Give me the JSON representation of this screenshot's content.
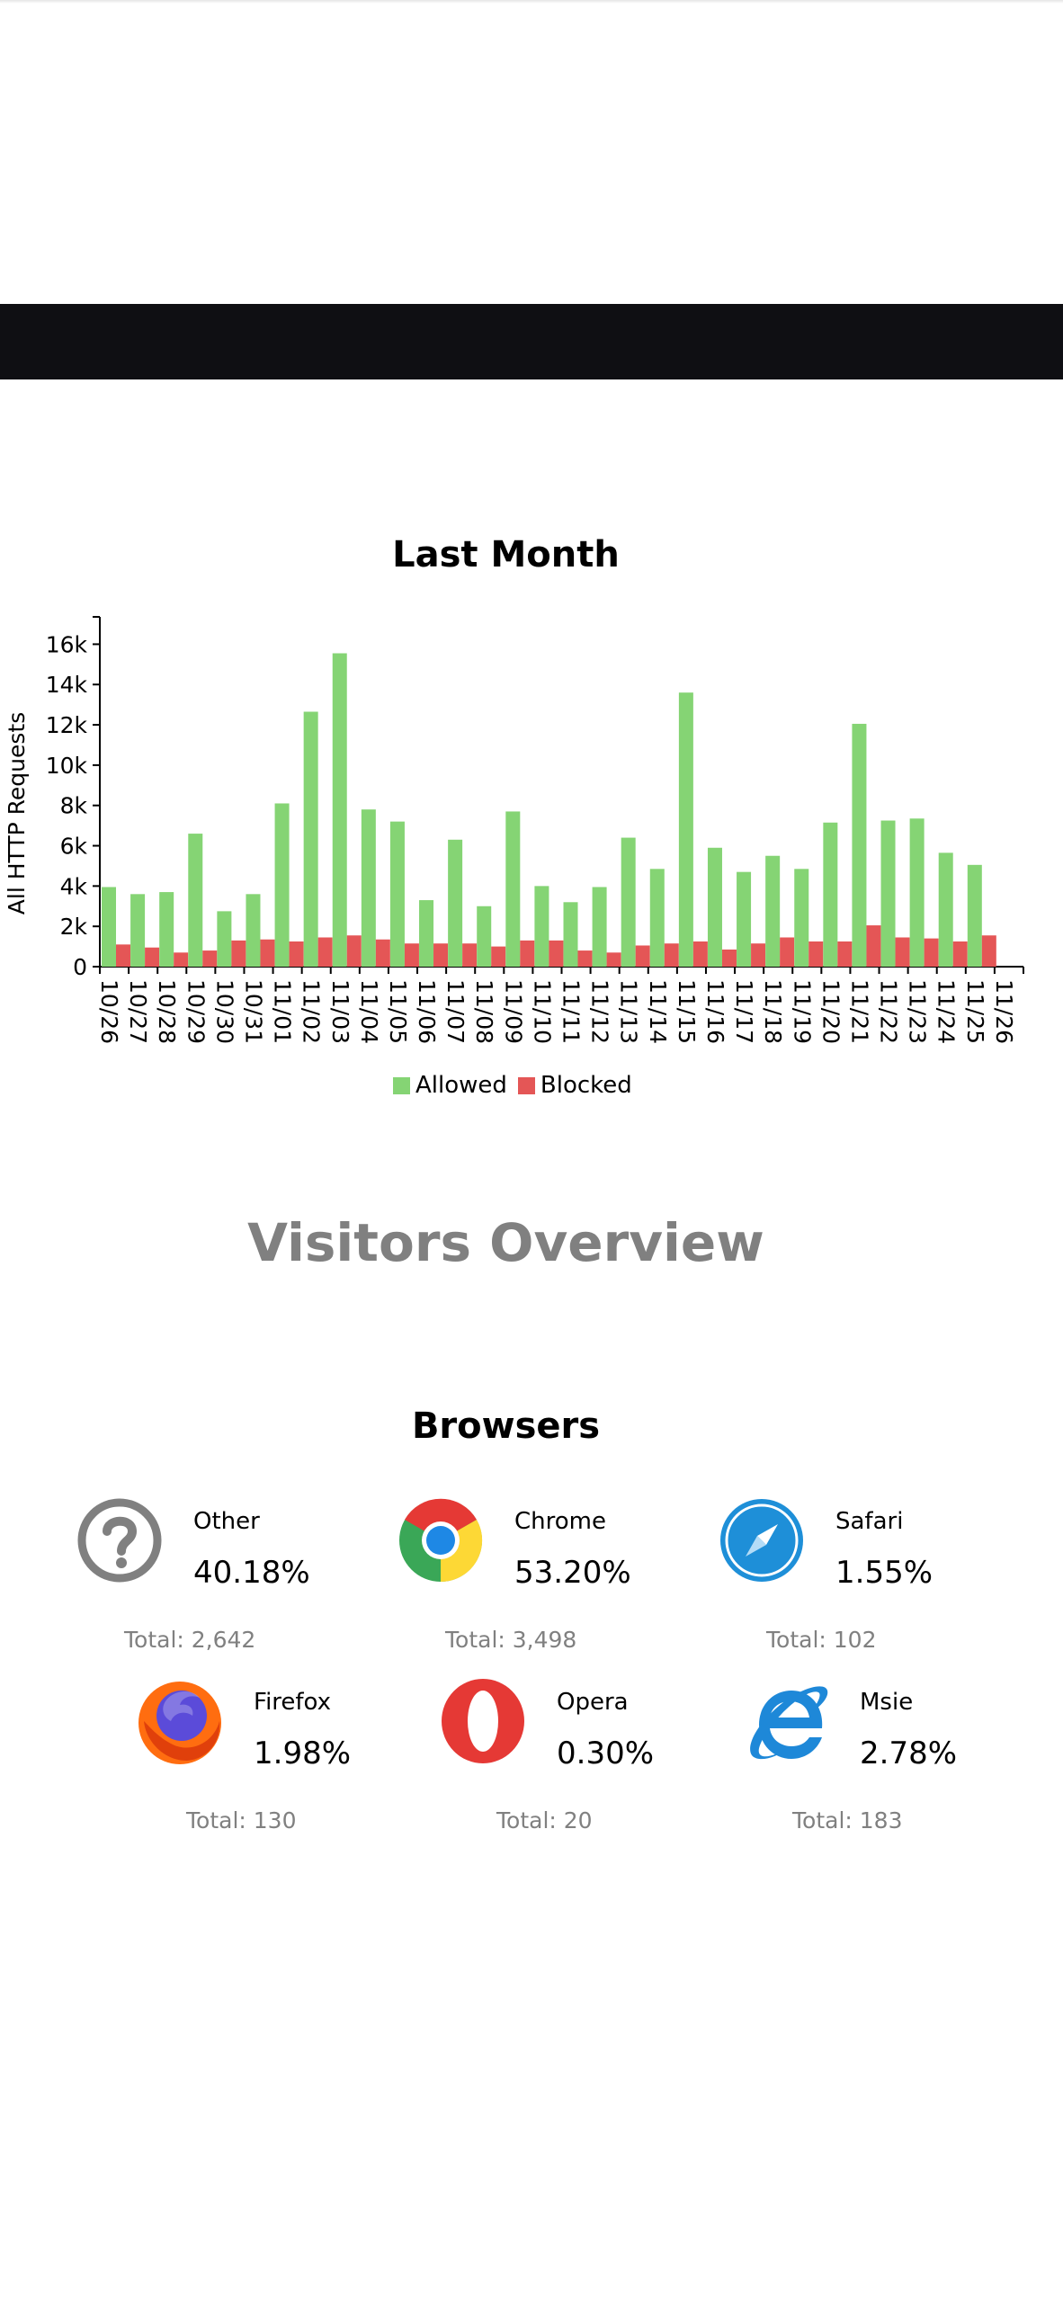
{
  "chart_data": {
    "type": "bar",
    "title": "Last Month",
    "ylabel": "All HTTP Requests",
    "xlabel": "",
    "ylim": [
      0,
      17000
    ],
    "yticks": [
      "0",
      "2k",
      "4k",
      "6k",
      "8k",
      "10k",
      "12k",
      "14k",
      "16k"
    ],
    "ytick_values": [
      0,
      2000,
      4000,
      6000,
      8000,
      10000,
      12000,
      14000,
      16000
    ],
    "categories": [
      "10/26",
      "10/27",
      "10/28",
      "10/29",
      "10/30",
      "10/31",
      "11/01",
      "11/02",
      "11/03",
      "11/04",
      "11/05",
      "11/06",
      "11/07",
      "11/08",
      "11/09",
      "11/10",
      "11/11",
      "11/12",
      "11/13",
      "11/14",
      "11/15",
      "11/16",
      "11/17",
      "11/18",
      "11/19",
      "11/20",
      "11/21",
      "11/22",
      "11/23",
      "11/24",
      "11/25",
      "11/26"
    ],
    "series": [
      {
        "name": "Allowed",
        "color": "#85d474",
        "values": [
          3950,
          3600,
          3700,
          6600,
          2750,
          3600,
          8100,
          12650,
          15550,
          7800,
          7200,
          3300,
          6300,
          3000,
          7700,
          4000,
          3200,
          3950,
          6400,
          4850,
          13600,
          5900,
          4700,
          5500,
          4850,
          7150,
          12050,
          7250,
          7350,
          5650,
          5050,
          0
        ]
      },
      {
        "name": "Blocked",
        "color": "#e45656",
        "values": [
          1100,
          950,
          700,
          800,
          1300,
          1350,
          1250,
          1450,
          1550,
          1350,
          1150,
          1150,
          1150,
          1000,
          1300,
          1300,
          800,
          700,
          1050,
          1150,
          1250,
          850,
          1150,
          1450,
          1250,
          1250,
          2050,
          1450,
          1400,
          1250,
          1550,
          0
        ]
      }
    ],
    "legend_position": "bottom-center"
  },
  "visitors": {
    "title": "Visitors Overview",
    "browsers_title": "Browsers",
    "browsers": [
      {
        "name": "Other",
        "percent": "40.18%",
        "total": "Total: 2,642",
        "icon": "question-mark-icon"
      },
      {
        "name": "Chrome",
        "percent": "53.20%",
        "total": "Total: 3,498",
        "icon": "chrome-icon"
      },
      {
        "name": "Safari",
        "percent": "1.55%",
        "total": "Total: 102",
        "icon": "safari-icon"
      },
      {
        "name": "Firefox",
        "percent": "1.98%",
        "total": "Total: 130",
        "icon": "firefox-icon"
      },
      {
        "name": "Opera",
        "percent": "0.30%",
        "total": "Total: 20",
        "icon": "opera-icon"
      },
      {
        "name": "Msie",
        "percent": "2.78%",
        "total": "Total: 183",
        "icon": "msie-icon"
      }
    ]
  }
}
